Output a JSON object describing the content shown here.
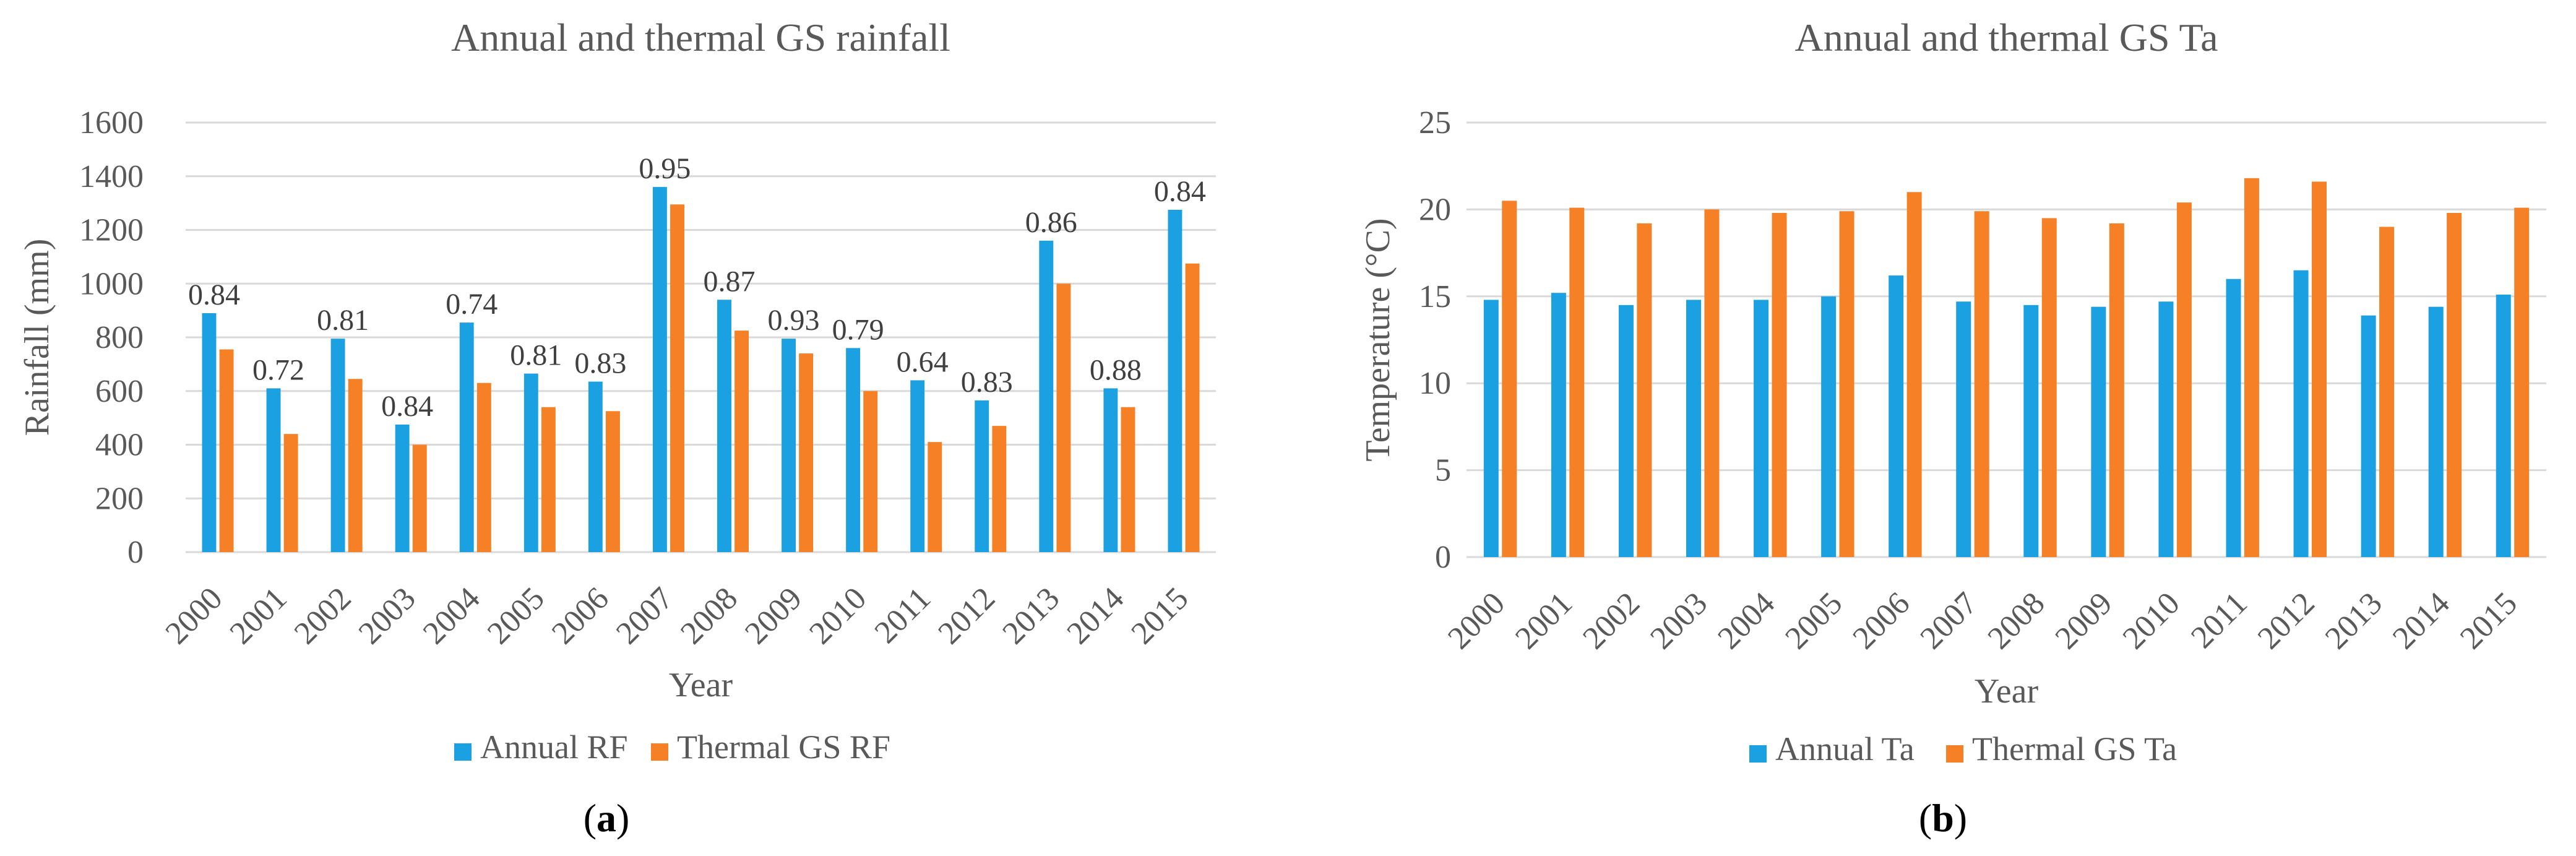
{
  "chart_data": [
    {
      "type": "bar",
      "panel_prefix": "(",
      "panel_letter": "a",
      "panel_suffix": ")",
      "title": "Annual and thermal GS rainfall",
      "xlabel": "Year",
      "ylabel": "Rainfall (mm)",
      "ylim": [
        0,
        1600
      ],
      "yticks": [
        0,
        200,
        400,
        600,
        800,
        1000,
        1200,
        1400,
        1600
      ],
      "grid": true,
      "legend_position": "bottom",
      "categories": [
        "2000",
        "2001",
        "2002",
        "2003",
        "2004",
        "2005",
        "2006",
        "2007",
        "2008",
        "2009",
        "2010",
        "2011",
        "2012",
        "2013",
        "2014",
        "2015"
      ],
      "series": [
        {
          "name": "Annual RF",
          "color": "#1BA1E2",
          "values": [
            890,
            610,
            795,
            475,
            855,
            665,
            635,
            1360,
            940,
            795,
            760,
            640,
            565,
            1160,
            610,
            1275
          ]
        },
        {
          "name": "Thermal GS RF",
          "color": "#F58025",
          "values": [
            755,
            440,
            645,
            400,
            630,
            540,
            525,
            1295,
            825,
            740,
            600,
            410,
            470,
            1000,
            540,
            1075
          ]
        }
      ],
      "data_labels": [
        "0.84",
        "0.72",
        "0.81",
        "0.84",
        "0.74",
        "0.81",
        "0.83",
        "0.95",
        "0.87",
        "0.93",
        "0.79",
        "0.64",
        "0.83",
        "0.86",
        "0.88",
        "0.84"
      ]
    },
    {
      "type": "bar",
      "panel_prefix": "(",
      "panel_letter": "b",
      "panel_suffix": ")",
      "title": "Annual and thermal GS Ta",
      "xlabel": "Year",
      "ylabel": "Temperature (°C)",
      "ylim": [
        0,
        25
      ],
      "yticks": [
        0,
        5,
        10,
        15,
        20,
        25
      ],
      "grid": true,
      "legend_position": "bottom",
      "categories": [
        "2000",
        "2001",
        "2002",
        "2003",
        "2004",
        "2005",
        "2006",
        "2007",
        "2008",
        "2009",
        "2010",
        "2011",
        "2012",
        "2013",
        "2014",
        "2015"
      ],
      "series": [
        {
          "name": "Annual Ta",
          "color": "#1BA1E2",
          "values": [
            14.8,
            15.2,
            14.5,
            14.8,
            14.8,
            15.0,
            16.2,
            14.7,
            14.5,
            14.4,
            14.7,
            16.0,
            16.5,
            13.9,
            14.4,
            15.1
          ]
        },
        {
          "name": "Thermal GS Ta",
          "color": "#F58025",
          "values": [
            20.5,
            20.1,
            19.2,
            20.0,
            19.8,
            19.9,
            21.0,
            19.9,
            19.5,
            19.2,
            20.4,
            21.8,
            21.6,
            19.0,
            19.8,
            20.1
          ]
        }
      ],
      "data_labels": []
    }
  ]
}
